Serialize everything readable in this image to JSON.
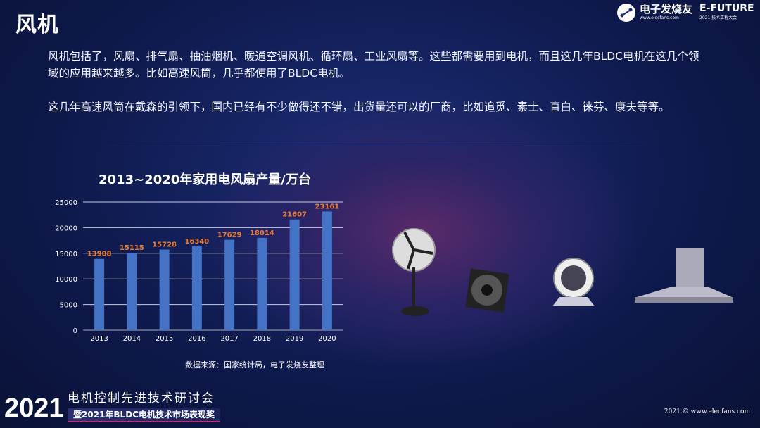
{
  "header": {
    "title": "风机",
    "logo_elecfans": "电子发烧友",
    "logo_elecfans_url": "www.elecfans.com",
    "logo_efuture": "E-FUTURE",
    "logo_efuture_sub": "2021 技术工程大会"
  },
  "body": {
    "paragraph1": "风机包括了，风扇、排气扇、抽油烟机、暖通空调风机、循环扇、工业风扇等。这些都需要用到电机，而且这几年BLDC电机在这几个领域的应用越来越多。比如高速风筒，几乎都使用了BLDC电机。",
    "paragraph2": "这几年高速风筒在戴森的引领下，国内已经有不少做得还不错，出货量还可以的厂商，比如追觅、素士、直白、徕芬、康夫等等。"
  },
  "chart_data": {
    "type": "bar",
    "title": "2013~2020年家用电风扇产量/万台",
    "categories": [
      "2013",
      "2014",
      "2015",
      "2016",
      "2017",
      "2018",
      "2019",
      "2020"
    ],
    "values": [
      13908,
      15115,
      15728,
      16340,
      17629,
      18014,
      21607,
      23161
    ],
    "ylim": [
      0,
      25000
    ],
    "yticks": [
      0,
      5000,
      10000,
      15000,
      20000,
      25000
    ],
    "grid": true,
    "bar_color": "#4472c4",
    "label_color": "#ed7d31"
  },
  "chart_source": "数据来源：国家统计局，电子发烧友整理",
  "footer": {
    "year": "2021",
    "line1": "电机控制先进技术研讨会",
    "line2": "暨2021年BLDC电机技术市场表现奖",
    "copyright": "2021 © www.elecfans.com"
  }
}
